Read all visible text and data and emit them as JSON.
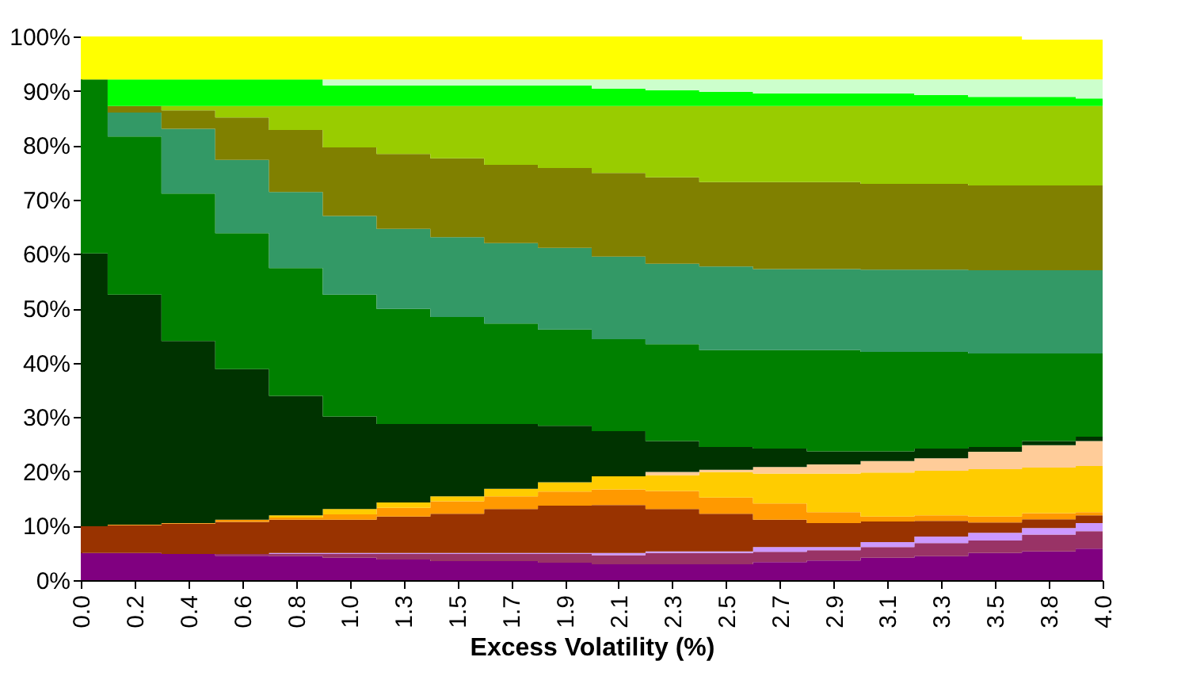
{
  "chart_data": {
    "type": "area",
    "stacked": true,
    "xlabel": "Excess Volatility (%)",
    "categories": [
      "0.0",
      "0.2",
      "0.4",
      "0.6",
      "0.8",
      "1.0",
      "1.3",
      "1.5",
      "1.7",
      "1.9",
      "2.1",
      "2.3",
      "2.5",
      "2.7",
      "2.9",
      "3.1",
      "3.3",
      "3.5",
      "3.8",
      "4.0"
    ],
    "ylim": [
      0,
      100
    ],
    "yticks": [
      {
        "value": 0,
        "label": "0%"
      },
      {
        "value": 10,
        "label": "10%"
      },
      {
        "value": 20,
        "label": "20%"
      },
      {
        "value": 30,
        "label": "30%"
      },
      {
        "value": 40,
        "label": "40%"
      },
      {
        "value": 50,
        "label": "50%"
      },
      {
        "value": 60,
        "label": "60%"
      },
      {
        "value": 70,
        "label": "70%"
      },
      {
        "value": 80,
        "label": "80%"
      },
      {
        "value": 90,
        "label": "90%"
      },
      {
        "value": 100,
        "label": "100%"
      }
    ],
    "grid": false,
    "legend": false,
    "series": [
      {
        "color": "#800080",
        "values": [
          5.0,
          5.0,
          4.8,
          4.5,
          4.4,
          4.1,
          3.8,
          3.5,
          3.5,
          3.2,
          2.9,
          2.9,
          2.9,
          3.3,
          3.6,
          4.1,
          4.4,
          5.0,
          5.3,
          5.8
        ]
      },
      {
        "color": "#993366",
        "values": [
          0,
          0,
          0,
          0.3,
          0.4,
          0.7,
          1.0,
          1.3,
          1.3,
          1.6,
          1.7,
          2.1,
          2.1,
          1.9,
          1.9,
          2.0,
          2.4,
          2.3,
          3.1,
          3.2
        ]
      },
      {
        "color": "#cc99ff",
        "values": [
          0,
          0,
          0,
          0,
          0.2,
          0.2,
          0.2,
          0.2,
          0.2,
          0.2,
          0.4,
          0.3,
          0.3,
          0.9,
          0.6,
          0.9,
          1.2,
          1.4,
          1.2,
          1.5
        ]
      },
      {
        "color": "#993300",
        "values": [
          4.9,
          5.1,
          5.6,
          5.9,
          6.1,
          6.1,
          6.7,
          7.2,
          8.1,
          8.7,
          8.8,
          7.8,
          6.9,
          5.0,
          4.4,
          3.8,
          2.9,
          1.9,
          1.6,
          1.4
        ]
      },
      {
        "color": "#ff9900",
        "values": [
          0,
          0.1,
          0.1,
          0.4,
          0.4,
          1.0,
          1.6,
          2.3,
          2.3,
          2.6,
          2.9,
          3.3,
          3.0,
          3.0,
          2.0,
          0.9,
          1.0,
          1.1,
          1.1,
          0.6
        ]
      },
      {
        "color": "#ffcc00",
        "values": [
          0,
          0,
          0,
          0,
          0.4,
          1.0,
          1.0,
          0.9,
          1.4,
          1.7,
          2.4,
          2.9,
          4.7,
          5.5,
          7.1,
          8.1,
          8.2,
          8.7,
          8.4,
          8.5
        ]
      },
      {
        "color": "#ffcc99",
        "values": [
          0,
          0,
          0,
          0,
          0,
          0,
          0,
          0,
          0,
          0,
          0,
          0.6,
          0.4,
          1.2,
          1.7,
          2.1,
          2.3,
          3.2,
          4.1,
          4.6
        ]
      },
      {
        "color": "#003300",
        "values": [
          50.2,
          42.3,
          33.5,
          27.7,
          22.0,
          17.0,
          14.4,
          13.3,
          11.9,
          10.4,
          8.3,
          5.7,
          4.2,
          3.4,
          2.4,
          1.8,
          1.8,
          0.9,
          0.8,
          0.8
        ]
      },
      {
        "color": "#008000",
        "values": [
          32.0,
          29.1,
          27.1,
          25.0,
          23.5,
          22.4,
          21.2,
          19.7,
          18.5,
          17.7,
          16.9,
          17.8,
          17.8,
          18.1,
          18.6,
          18.3,
          17.8,
          17.2,
          16.1,
          15.3
        ]
      },
      {
        "color": "#339966",
        "values": [
          0,
          4.4,
          11.9,
          13.5,
          14.0,
          14.5,
          14.7,
          14.7,
          14.8,
          15.0,
          15.2,
          14.8,
          15.4,
          14.9,
          14.9,
          15.1,
          15.1,
          15.3,
          15.3,
          15.3
        ]
      },
      {
        "color": "#808000",
        "values": [
          0,
          1.2,
          3.4,
          7.8,
          11.4,
          12.6,
          13.8,
          14.5,
          14.4,
          14.7,
          15.4,
          15.9,
          15.5,
          16.0,
          16.0,
          15.8,
          15.8,
          15.6,
          15.6,
          15.6
        ]
      },
      {
        "color": "#99cc00",
        "values": [
          0,
          0,
          0.8,
          2.1,
          4.4,
          7.6,
          8.8,
          9.6,
          10.8,
          11.4,
          12.3,
          13.1,
          14.0,
          14.0,
          14.0,
          14.3,
          14.3,
          14.6,
          14.6,
          14.6
        ]
      },
      {
        "color": "#00ff00",
        "values": [
          0,
          4.9,
          4.9,
          4.9,
          4.9,
          3.8,
          3.8,
          3.8,
          3.8,
          3.8,
          3.2,
          2.9,
          2.6,
          2.3,
          2.3,
          2.3,
          2.0,
          1.7,
          1.7,
          1.4
        ]
      },
      {
        "color": "#ccffcc",
        "values": [
          0,
          0,
          0,
          0,
          0,
          1.1,
          1.1,
          1.1,
          1.1,
          1.1,
          1.7,
          2.0,
          2.3,
          2.6,
          2.6,
          2.6,
          2.9,
          3.2,
          3.2,
          3.5
        ]
      },
      {
        "color": "#ffff00",
        "values": [
          7.9,
          7.9,
          7.9,
          7.9,
          7.9,
          7.9,
          7.9,
          7.9,
          7.9,
          7.9,
          7.9,
          7.9,
          7.9,
          7.9,
          7.9,
          7.9,
          7.9,
          7.9,
          7.3,
          7.3
        ]
      }
    ]
  }
}
